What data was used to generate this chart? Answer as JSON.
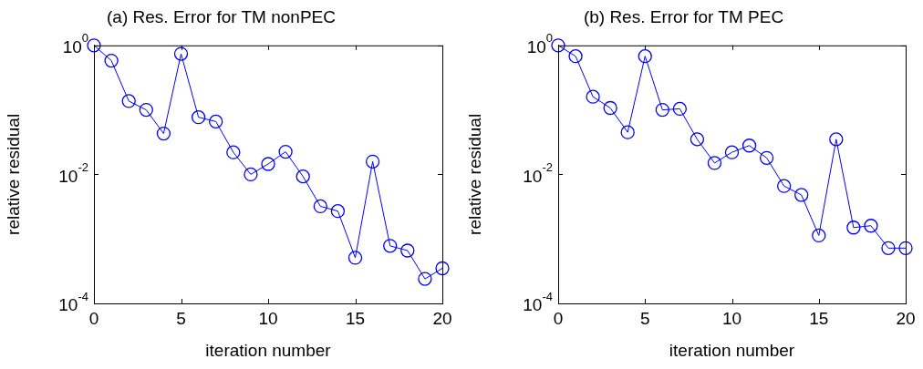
{
  "chart_data": [
    {
      "type": "line",
      "title": "(a) Res. Error for TM nonPEC",
      "xlabel": "iteration number",
      "ylabel": "relative residual",
      "x": [
        0,
        1,
        2,
        3,
        4,
        5,
        6,
        7,
        8,
        9,
        10,
        11,
        12,
        13,
        14,
        15,
        16,
        17,
        18,
        19,
        20
      ],
      "series": [
        {
          "color": "#0000ff",
          "values": [
            1,
            0.58,
            0.137,
            0.1,
            0.043,
            0.74,
            0.077,
            0.066,
            0.022,
            0.01,
            0.0145,
            0.0224,
            0.0093,
            0.0032,
            0.0027,
            0.00051,
            0.0158,
            0.00078,
            0.00066,
            0.00024,
            0.00035
          ]
        }
      ],
      "xlim": [
        0,
        20
      ],
      "xticks": [
        0,
        5,
        10,
        15,
        20
      ],
      "ylim": [
        0.0001,
        1
      ],
      "yticks": [
        {
          "value": 1,
          "label": "10$^{0}$"
        },
        {
          "value": 0.01,
          "label": "10$^{-2}$"
        },
        {
          "value": 0.0001,
          "label": "10$^{-4}$"
        }
      ],
      "log": "y",
      "grid": false,
      "legend": false,
      "marker": "circle",
      "line_style": "solid"
    },
    {
      "type": "line",
      "title": "(b) Res. Error for TM PEC",
      "xlabel": "iteration number",
      "ylabel": "relative residual",
      "x": [
        0,
        1,
        2,
        3,
        4,
        5,
        6,
        7,
        8,
        9,
        10,
        11,
        12,
        13,
        14,
        15,
        16,
        17,
        18,
        19,
        20
      ],
      "series": [
        {
          "color": "#0000ff",
          "values": [
            1,
            0.68,
            0.16,
            0.107,
            0.045,
            0.68,
            0.1,
            0.104,
            0.035,
            0.015,
            0.022,
            0.028,
            0.018,
            0.0066,
            0.0048,
            0.00113,
            0.035,
            0.0015,
            0.0016,
            0.00072,
            0.00072
          ]
        }
      ],
      "xlim": [
        0,
        20
      ],
      "xticks": [
        0,
        5,
        10,
        15,
        20
      ],
      "ylim": [
        0.0001,
        1
      ],
      "yticks": [
        {
          "value": 1,
          "label": "10$^{0}$"
        },
        {
          "value": 0.01,
          "label": "10$^{-2}$"
        },
        {
          "value": 0.0001,
          "label": "10$^{-4}$"
        }
      ],
      "log": "y",
      "grid": false,
      "legend": false,
      "marker": "circle",
      "line_style": "solid"
    }
  ]
}
